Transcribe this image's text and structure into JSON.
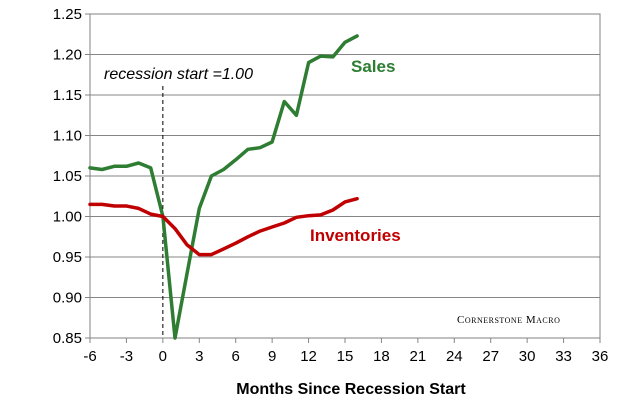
{
  "chart_data": {
    "type": "line",
    "xlabel": "Months Since Recession Start",
    "ylabel": "",
    "xlim": [
      -6,
      36
    ],
    "ylim": [
      0.85,
      1.25
    ],
    "x_ticks": [
      -6,
      -3,
      0,
      3,
      6,
      9,
      12,
      15,
      18,
      21,
      24,
      27,
      30,
      33,
      36
    ],
    "x_tick_labels": [
      "-6",
      "-3",
      "0",
      "3",
      "6",
      "9",
      "12",
      "15",
      "18",
      "21",
      "24",
      "27",
      "30",
      "33",
      "36"
    ],
    "y_ticks": [
      0.85,
      0.9,
      0.95,
      1.0,
      1.05,
      1.1,
      1.15,
      1.2,
      1.25
    ],
    "y_tick_labels": [
      "0.85",
      "0.90",
      "0.95",
      "1.00",
      "1.05",
      "1.10",
      "1.15",
      "1.20",
      "1.25"
    ],
    "grid": "horizontal",
    "annotation": {
      "text": "recession start =1.00",
      "x": 0
    },
    "brand": "Cornerstone Macro",
    "series": [
      {
        "name": "Sales",
        "color": "#2e7d32",
        "x": [
          -6,
          -5,
          -4,
          -3,
          -2,
          -1,
          0,
          1,
          2,
          3,
          4,
          5,
          6,
          7,
          8,
          9,
          10,
          11,
          12,
          13,
          14,
          15,
          16
        ],
        "y": [
          1.06,
          1.058,
          1.062,
          1.062,
          1.066,
          1.06,
          1.0,
          0.85,
          0.93,
          1.01,
          1.05,
          1.058,
          1.07,
          1.083,
          1.085,
          1.092,
          1.142,
          1.125,
          1.19,
          1.198,
          1.197,
          1.215,
          1.223
        ]
      },
      {
        "name": "Inventories",
        "color": "#c00000",
        "x": [
          -6,
          -5,
          -4,
          -3,
          -2,
          -1,
          0,
          1,
          2,
          3,
          4,
          5,
          6,
          7,
          8,
          9,
          10,
          11,
          12,
          13,
          14,
          15,
          16
        ],
        "y": [
          1.015,
          1.015,
          1.013,
          1.013,
          1.01,
          1.003,
          1.0,
          0.985,
          0.965,
          0.953,
          0.953,
          0.96,
          0.967,
          0.975,
          0.982,
          0.987,
          0.992,
          0.999,
          1.001,
          1.002,
          1.008,
          1.018,
          1.022
        ]
      }
    ]
  }
}
